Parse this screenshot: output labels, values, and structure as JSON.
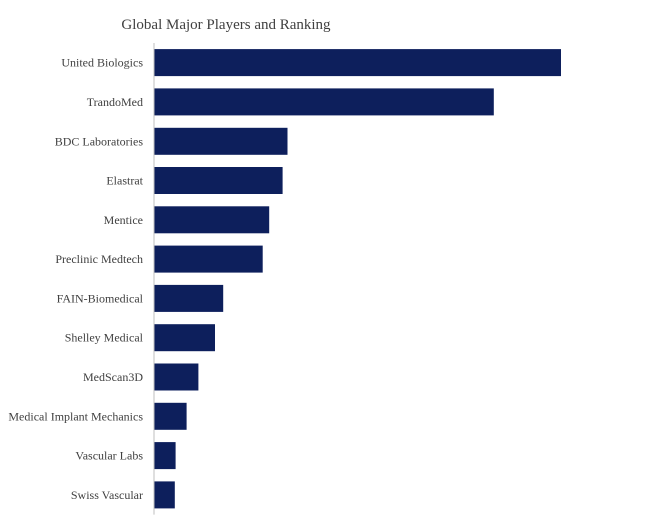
{
  "chart_data": {
    "type": "bar",
    "orientation": "horizontal",
    "title": "Global Major Players and Ranking",
    "xlabel": "",
    "ylabel": "",
    "categories": [
      "United Biologics",
      "TrandoMed",
      "BDC Laboratories",
      "Elastrat",
      "Mentice",
      "Preclinic Medtech",
      "FAIN-Biomedical",
      "Shelley Medical",
      "MedScan3D",
      "Medical Implant Mechanics",
      "Vascular Labs",
      "Swiss Vascular"
    ],
    "values": [
      100,
      83.5,
      32.8,
      31.6,
      28.3,
      26.7,
      17.0,
      15.0,
      10.9,
      8.0,
      5.3,
      5.1
    ],
    "xlim": [
      0,
      100
    ],
    "grid": false,
    "legend": "none",
    "colors": {
      "bar": "#0d1f5c",
      "axis": "#bfbfbf",
      "text": "#404040"
    }
  }
}
